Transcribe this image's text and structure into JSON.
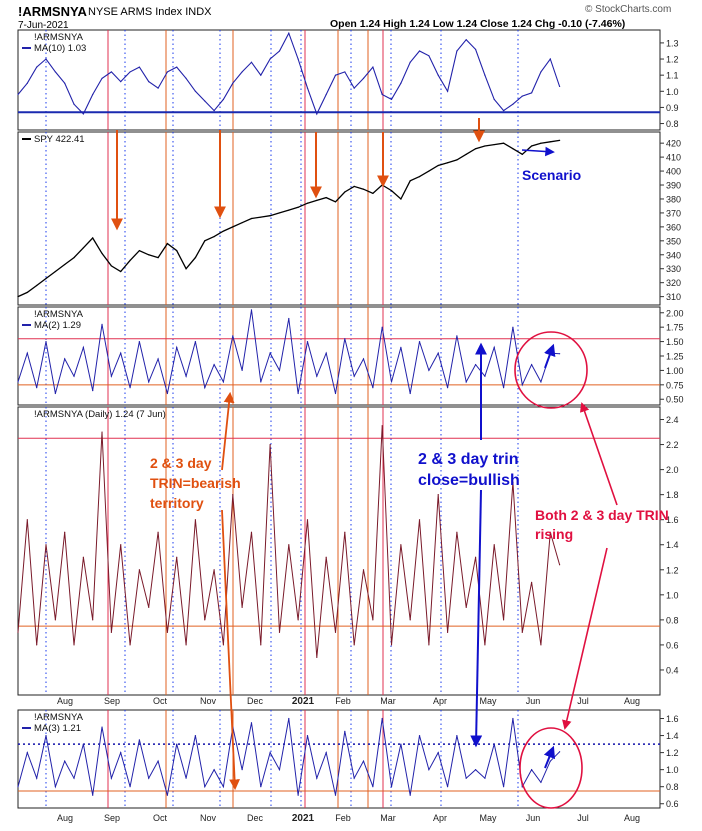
{
  "header": {
    "symbol": "!ARMSNYA",
    "name": "NYSE ARMS Index INDX",
    "date": "7-Jun-2021",
    "ohlc": "Open 1.24  High 1.24  Low 1.24  Close 1.24  Chg -0.10 (-7.46%)",
    "brand": "© StockCharts.com"
  },
  "colors": {
    "arms": "#2222aa",
    "daily": "#7a1a2a",
    "spy": "#000000",
    "red_line": "#e03050",
    "orange_line": "#e06020",
    "grid_dot": "#1a3aee",
    "annot_orange": "#e05010",
    "annot_blue": "#1010cc",
    "annot_red": "#e01040"
  },
  "x_axis": {
    "month_labels": [
      "Aug",
      "Sep",
      "Oct",
      "Nov",
      "Dec",
      "2021",
      "Feb",
      "Mar",
      "Apr",
      "May",
      "Jun",
      "Jul",
      "Aug"
    ]
  },
  "annotations": {
    "scenario": "Scenario",
    "bearish": [
      "2 & 3 day",
      "TRIN=bearish",
      "territory"
    ],
    "bullish": [
      "2 & 3 day trin",
      "close=bullish"
    ],
    "rising": [
      "Both 2 & 3 day TRIN",
      "rising"
    ]
  },
  "chart_data": [
    {
      "type": "line",
      "panel": "MA(10)",
      "title": "!ARMSNYA",
      "legend": "MA(10) 1.03",
      "y_ticks": [
        0.8,
        0.9,
        1.0,
        1.1,
        1.2,
        1.3
      ],
      "ylim": [
        0.76,
        1.38
      ],
      "reference_lines": [
        0.87
      ],
      "x": [
        0,
        4,
        8,
        12,
        16,
        20,
        24,
        28,
        32,
        36,
        40,
        44,
        48,
        52,
        56,
        60,
        64,
        68,
        72,
        76,
        80,
        84,
        88,
        92,
        96,
        100,
        104,
        108,
        112,
        116,
        120,
        124,
        128,
        132,
        136,
        140,
        144,
        148,
        152,
        156,
        160,
        164,
        168,
        172,
        176,
        180,
        184,
        188,
        192,
        196,
        200,
        204,
        208,
        212,
        216,
        220,
        224,
        228,
        232
      ],
      "values": [
        0.98,
        1.05,
        1.15,
        1.2,
        1.12,
        1.05,
        0.92,
        0.86,
        0.98,
        1.08,
        1.12,
        1.06,
        1.12,
        1.15,
        1.06,
        1.02,
        1.12,
        1.15,
        1.08,
        1.0,
        0.94,
        0.88,
        0.95,
        1.05,
        1.12,
        1.18,
        1.1,
        1.2,
        1.25,
        1.36,
        1.2,
        1.02,
        0.86,
        0.98,
        1.1,
        1.12,
        1.02,
        1.08,
        1.15,
        0.98,
        0.95,
        1.05,
        1.18,
        1.25,
        1.22,
        1.1,
        1.0,
        1.25,
        1.32,
        1.26,
        1.1,
        0.95,
        0.88,
        0.92,
        0.97,
        0.99,
        1.12,
        1.2,
        1.03
      ]
    },
    {
      "type": "line",
      "panel": "SPY",
      "legend": "SPY 422.41",
      "y_ticks": [
        310,
        320,
        330,
        340,
        350,
        360,
        370,
        380,
        390,
        400,
        410,
        420
      ],
      "ylim": [
        304,
        428
      ],
      "x": [
        0,
        4,
        8,
        12,
        16,
        20,
        24,
        28,
        32,
        36,
        40,
        44,
        48,
        52,
        56,
        60,
        64,
        68,
        72,
        76,
        80,
        84,
        88,
        92,
        96,
        100,
        104,
        108,
        112,
        116,
        120,
        124,
        128,
        132,
        136,
        140,
        144,
        148,
        152,
        156,
        160,
        164,
        168,
        172,
        176,
        180,
        184,
        188,
        192,
        196,
        200,
        204,
        208,
        212,
        216,
        220,
        224,
        228,
        232
      ],
      "values": [
        310,
        313,
        318,
        323,
        328,
        333,
        338,
        345,
        352,
        341,
        332,
        328,
        336,
        343,
        340,
        338,
        348,
        343,
        330,
        338,
        350,
        353,
        357,
        360,
        363,
        366,
        367,
        368,
        370,
        372,
        374,
        377,
        379,
        381,
        378,
        385,
        389,
        387,
        384,
        390,
        386,
        380,
        393,
        396,
        400,
        404,
        406,
        408,
        412,
        416,
        418,
        419,
        420,
        416,
        412,
        418,
        420,
        421,
        422
      ]
    },
    {
      "type": "line",
      "panel": "MA(2)",
      "title": "!ARMSNYA",
      "legend": "MA(2) 1.29",
      "y_ticks": [
        0.5,
        0.75,
        1.0,
        1.25,
        1.5,
        1.75,
        2.0
      ],
      "ylim": [
        0.4,
        2.1
      ],
      "reference_lines": [
        1.55,
        0.75
      ],
      "x": [
        0,
        4,
        8,
        12,
        16,
        20,
        24,
        28,
        32,
        36,
        40,
        44,
        48,
        52,
        56,
        60,
        64,
        68,
        72,
        76,
        80,
        84,
        88,
        92,
        96,
        100,
        104,
        108,
        112,
        116,
        120,
        124,
        128,
        132,
        136,
        140,
        144,
        148,
        152,
        156,
        160,
        164,
        168,
        172,
        176,
        180,
        184,
        188,
        192,
        196,
        200,
        204,
        208,
        212,
        216,
        220,
        224,
        228,
        232
      ],
      "values": [
        0.8,
        1.3,
        0.7,
        1.5,
        0.6,
        1.2,
        0.9,
        1.4,
        0.65,
        1.8,
        0.9,
        1.3,
        0.7,
        1.5,
        0.8,
        1.2,
        0.6,
        1.4,
        0.9,
        1.5,
        0.7,
        1.1,
        0.8,
        1.6,
        1.0,
        2.05,
        0.8,
        1.3,
        1.0,
        1.9,
        0.6,
        1.5,
        0.9,
        1.3,
        0.6,
        1.55,
        0.9,
        1.2,
        0.7,
        1.75,
        0.8,
        1.4,
        0.6,
        1.5,
        1.0,
        1.3,
        0.7,
        1.6,
        0.8,
        1.1,
        0.9,
        1.4,
        0.7,
        1.75,
        0.75,
        1.1,
        0.8,
        1.3,
        1.29
      ]
    },
    {
      "type": "line",
      "panel": "Daily",
      "title": "!ARMSNYA (Daily) 1.24 (7 Jun)",
      "y_ticks": [
        0.4,
        0.6,
        0.8,
        1.0,
        1.2,
        1.4,
        1.6,
        1.8,
        2.0,
        2.2,
        2.4
      ],
      "ylim": [
        0.2,
        2.5
      ],
      "reference_lines": [
        2.25,
        0.75
      ],
      "x": [
        0,
        4,
        8,
        12,
        16,
        20,
        24,
        28,
        32,
        36,
        40,
        44,
        48,
        52,
        56,
        60,
        64,
        68,
        72,
        76,
        80,
        84,
        88,
        92,
        96,
        100,
        104,
        108,
        112,
        116,
        120,
        124,
        128,
        132,
        136,
        140,
        144,
        148,
        152,
        156,
        160,
        164,
        168,
        172,
        176,
        180,
        184,
        188,
        192,
        196,
        200,
        204,
        208,
        212,
        216,
        220,
        224,
        228,
        232
      ],
      "values": [
        0.7,
        1.6,
        0.6,
        1.4,
        0.8,
        1.5,
        0.6,
        1.3,
        0.8,
        2.3,
        0.7,
        1.4,
        0.6,
        1.2,
        0.9,
        1.5,
        0.7,
        1.3,
        0.6,
        1.6,
        0.8,
        1.2,
        0.6,
        1.8,
        0.9,
        1.5,
        0.6,
        2.2,
        0.7,
        1.4,
        0.8,
        1.6,
        0.5,
        1.3,
        0.7,
        1.5,
        0.6,
        1.2,
        0.8,
        2.35,
        0.6,
        1.4,
        0.8,
        1.6,
        0.6,
        1.8,
        0.7,
        1.5,
        0.9,
        1.3,
        0.6,
        1.4,
        0.8,
        1.9,
        0.7,
        1.1,
        0.6,
        1.5,
        1.24
      ]
    },
    {
      "type": "line",
      "panel": "MA(3)",
      "title": "!ARMSNYA",
      "legend": "MA(3) 1.21",
      "y_ticks": [
        0.6,
        0.8,
        1.0,
        1.2,
        1.4,
        1.6
      ],
      "ylim": [
        0.55,
        1.7
      ],
      "reference_lines": [
        1.3,
        0.75
      ],
      "x": [
        0,
        4,
        8,
        12,
        16,
        20,
        24,
        28,
        32,
        36,
        40,
        44,
        48,
        52,
        56,
        60,
        64,
        68,
        72,
        76,
        80,
        84,
        88,
        92,
        96,
        100,
        104,
        108,
        112,
        116,
        120,
        124,
        128,
        132,
        136,
        140,
        144,
        148,
        152,
        156,
        160,
        164,
        168,
        172,
        176,
        180,
        184,
        188,
        192,
        196,
        200,
        204,
        208,
        212,
        216,
        220,
        224,
        228,
        232
      ],
      "values": [
        0.8,
        1.2,
        0.9,
        1.4,
        0.8,
        1.1,
        0.9,
        1.3,
        0.7,
        1.5,
        0.9,
        1.2,
        0.8,
        1.35,
        0.9,
        1.1,
        0.7,
        1.3,
        0.9,
        1.4,
        0.8,
        1.0,
        0.8,
        1.5,
        1.0,
        1.55,
        0.8,
        1.2,
        1.0,
        1.6,
        0.7,
        1.4,
        0.9,
        1.2,
        0.7,
        1.45,
        0.9,
        1.1,
        0.8,
        1.6,
        0.8,
        1.3,
        0.7,
        1.4,
        1.0,
        1.2,
        0.8,
        1.4,
        0.9,
        1.0,
        0.9,
        1.3,
        0.8,
        1.6,
        0.8,
        1.0,
        0.85,
        1.1,
        1.21
      ]
    }
  ]
}
